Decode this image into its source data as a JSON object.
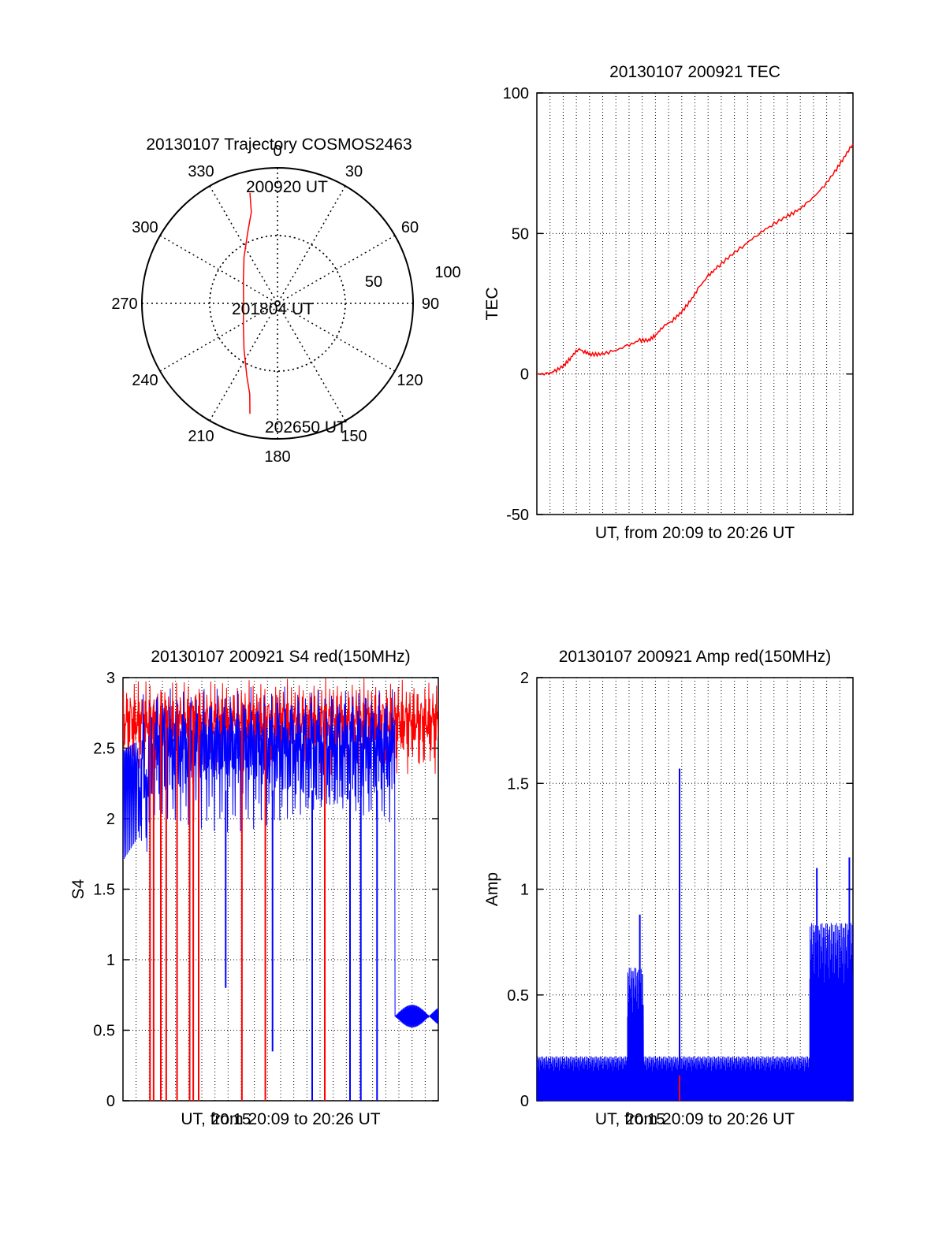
{
  "colors": {
    "red": "#ff0000",
    "blue": "#0000ff",
    "axis": "#000000",
    "grid": "#000000"
  },
  "chart_data": [
    {
      "id": "trajectory",
      "type": "polar",
      "title": "20130107 Trajectory COSMOS2463",
      "angle_labels": [
        "0",
        "30",
        "60",
        "90",
        "120",
        "150",
        "180",
        "210",
        "240",
        "270",
        "300",
        "330"
      ],
      "radial_labels": [
        "50",
        "100"
      ],
      "radial_ticks": [
        50,
        100
      ],
      "rmax": 100,
      "start_label": "200920 UT",
      "mid_label": "201804 UT",
      "end_label": "202650 UT",
      "track": [
        [
          346,
          84
        ],
        [
          344,
          70
        ],
        [
          338,
          58
        ],
        [
          324,
          42
        ],
        [
          303,
          30
        ],
        [
          270,
          25
        ],
        [
          237,
          30
        ],
        [
          216,
          42
        ],
        [
          203,
          58
        ],
        [
          197,
          70
        ],
        [
          194,
          84
        ]
      ]
    },
    {
      "id": "tec",
      "type": "line",
      "title": "20130107 200921 TEC",
      "ylabel": "TEC",
      "xlabel": "UT, from 20:09 to 20:26 UT",
      "ylim": [
        -50,
        100
      ],
      "yticks": [
        "100",
        "50",
        "0",
        "-50"
      ],
      "xlim": [
        0,
        17.5
      ],
      "x_unit": "minutes after 20:09",
      "series": [
        {
          "color": "red",
          "points": [
            [
              0,
              0
            ],
            [
              0.6,
              0
            ],
            [
              1.0,
              1
            ],
            [
              1.5,
              3
            ],
            [
              1.9,
              6
            ],
            [
              2.3,
              9
            ],
            [
              2.6,
              8
            ],
            [
              3.0,
              7
            ],
            [
              3.5,
              7
            ],
            [
              4.2,
              8
            ],
            [
              5.0,
              10
            ],
            [
              5.7,
              12
            ],
            [
              6.2,
              12
            ],
            [
              6.6,
              14
            ],
            [
              7.0,
              17
            ],
            [
              7.5,
              19
            ],
            [
              8.0,
              22
            ],
            [
              8.5,
              26
            ],
            [
              9.0,
              31
            ],
            [
              9.5,
              35
            ],
            [
              10.0,
              38
            ],
            [
              10.7,
              42
            ],
            [
              11.5,
              46
            ],
            [
              12.3,
              50
            ],
            [
              13.0,
              53
            ],
            [
              13.8,
              56
            ],
            [
              14.4,
              58
            ],
            [
              15.0,
              61
            ],
            [
              15.8,
              66
            ],
            [
              16.5,
              72
            ],
            [
              17.0,
              77
            ],
            [
              17.5,
              82
            ]
          ]
        }
      ]
    },
    {
      "id": "s4",
      "type": "line",
      "title": "20130107 200921 S4 red(150MHz)",
      "ylabel": "S4",
      "xlabel": "UT, from 20:09 to 20:26 UT",
      "xtick_label": "20:15",
      "ylim": [
        0,
        3
      ],
      "yticks": [
        "3",
        "2.5",
        "2",
        "1.5",
        "1",
        "0.5",
        "0"
      ],
      "xlim": [
        0,
        17.5
      ],
      "x_unit": "minutes after 20:09",
      "red_spikes": [
        [
          1.5,
          0
        ],
        [
          1.7,
          0
        ],
        [
          2.1,
          0
        ],
        [
          2.4,
          0
        ],
        [
          3.0,
          0
        ],
        [
          3.7,
          0
        ],
        [
          3.9,
          0
        ],
        [
          4.2,
          0
        ],
        [
          6.6,
          0
        ],
        [
          7.9,
          0
        ],
        [
          11.2,
          0
        ]
      ],
      "blue_dips": [
        [
          5.7,
          0.8
        ],
        [
          8.3,
          0.35
        ],
        [
          10.5,
          0
        ],
        [
          12.6,
          0
        ],
        [
          13.2,
          0
        ],
        [
          14.1,
          0
        ]
      ],
      "blue_tail": [
        [
          15.2,
          0.6
        ],
        [
          15.8,
          0.62
        ],
        [
          16.4,
          0.58
        ],
        [
          17.0,
          0.6
        ],
        [
          17.5,
          0.58
        ]
      ]
    },
    {
      "id": "amp",
      "type": "line",
      "title": "20130107 200921 Amp red(150MHz)",
      "ylabel": "Amp",
      "xlabel": "UT, from 20:09 to 20:26 UT",
      "xtick_label": "20:15",
      "ylim": [
        0,
        2
      ],
      "yticks": [
        "2",
        "1.5",
        "1",
        "0.5",
        "0"
      ],
      "xlim": [
        0,
        17.5
      ],
      "x_unit": "minutes after 20:09",
      "peaks": [
        [
          5.7,
          0.88
        ],
        [
          7.9,
          1.57
        ],
        [
          15.5,
          1.1
        ],
        [
          17.3,
          1.15
        ]
      ],
      "baseline": 0.15
    }
  ]
}
